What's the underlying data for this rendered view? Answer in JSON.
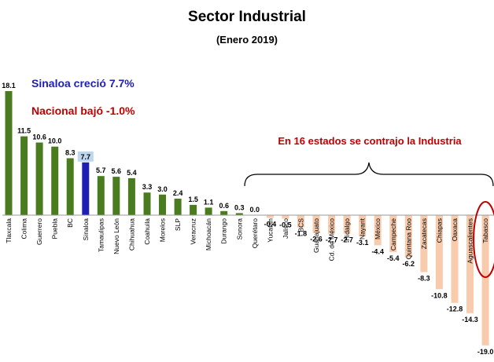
{
  "chart_data": {
    "type": "bar",
    "title": "Sector Industrial",
    "subtitle": "(Enero 2019)",
    "categories": [
      "Tlaxcala",
      "Colima",
      "Guerrero",
      "Puebla",
      "BC",
      "Sinaloa",
      "Tamaulipas",
      "Nuevo León",
      "Chihuahua",
      "Coahuila",
      "Morelos",
      "SLP",
      "Veracruz",
      "Michoacán",
      "Durango",
      "Sonora",
      "Querétaro",
      "Yucatán",
      "Jalisco",
      "BCS",
      "Guanajuato",
      "Cd. de México",
      "Hidalgo",
      "Nayarit",
      "México",
      "Campeche",
      "Quintana Roo",
      "Zacatecas",
      "Chiapas",
      "Oaxaca",
      "Aguascalientes",
      "Tabasco"
    ],
    "values": [
      18.1,
      11.5,
      10.6,
      10.0,
      8.3,
      7.7,
      5.7,
      5.6,
      5.4,
      3.3,
      3.0,
      2.4,
      1.5,
      1.1,
      0.6,
      0.3,
      0.0,
      -0.4,
      -0.5,
      -1.8,
      -2.6,
      -2.7,
      -2.7,
      -3.1,
      -4.4,
      -5.4,
      -6.2,
      -8.3,
      -10.8,
      -12.8,
      -14.3,
      -19.0
    ],
    "value_labels": [
      "18.1",
      "11.5",
      "10.6",
      "10.0",
      "8.3",
      "7.7",
      "5.7",
      "5.6",
      "5.4",
      "3.3",
      "3.0",
      "2.4",
      "1.5",
      "1.1",
      "0.6",
      "0.3",
      "0.0",
      "-0.4",
      "-0.5",
      "-1.8",
      "-2.6",
      "-2.7",
      "-2.7",
      "-3.1",
      "-4.4",
      "-5.4",
      "-6.2",
      "-8.3",
      "-10.8",
      "-12.8",
      "-14.3",
      "-19.0"
    ],
    "highlight_category": "Sinaloa",
    "circled_category": "Tabasco",
    "ylim": [
      -19.0,
      18.1
    ],
    "grid": false,
    "colors": {
      "positive": "#4a7c1f",
      "highlight": "#1f1fb4",
      "highlight_label_bg": "#bdd7ee",
      "negative": "#f8cbad",
      "circle": "#c00000"
    },
    "annotations": {
      "sinaloa": "Sinaloa creció 7.7%",
      "nacional": "Nacional bajó -1.0%",
      "states": "En 16 estados se contrajo la Industria"
    },
    "annotation_colors": {
      "sinaloa": "#1f1fb4",
      "nacional": "#c00000",
      "states": "#c00000"
    }
  }
}
